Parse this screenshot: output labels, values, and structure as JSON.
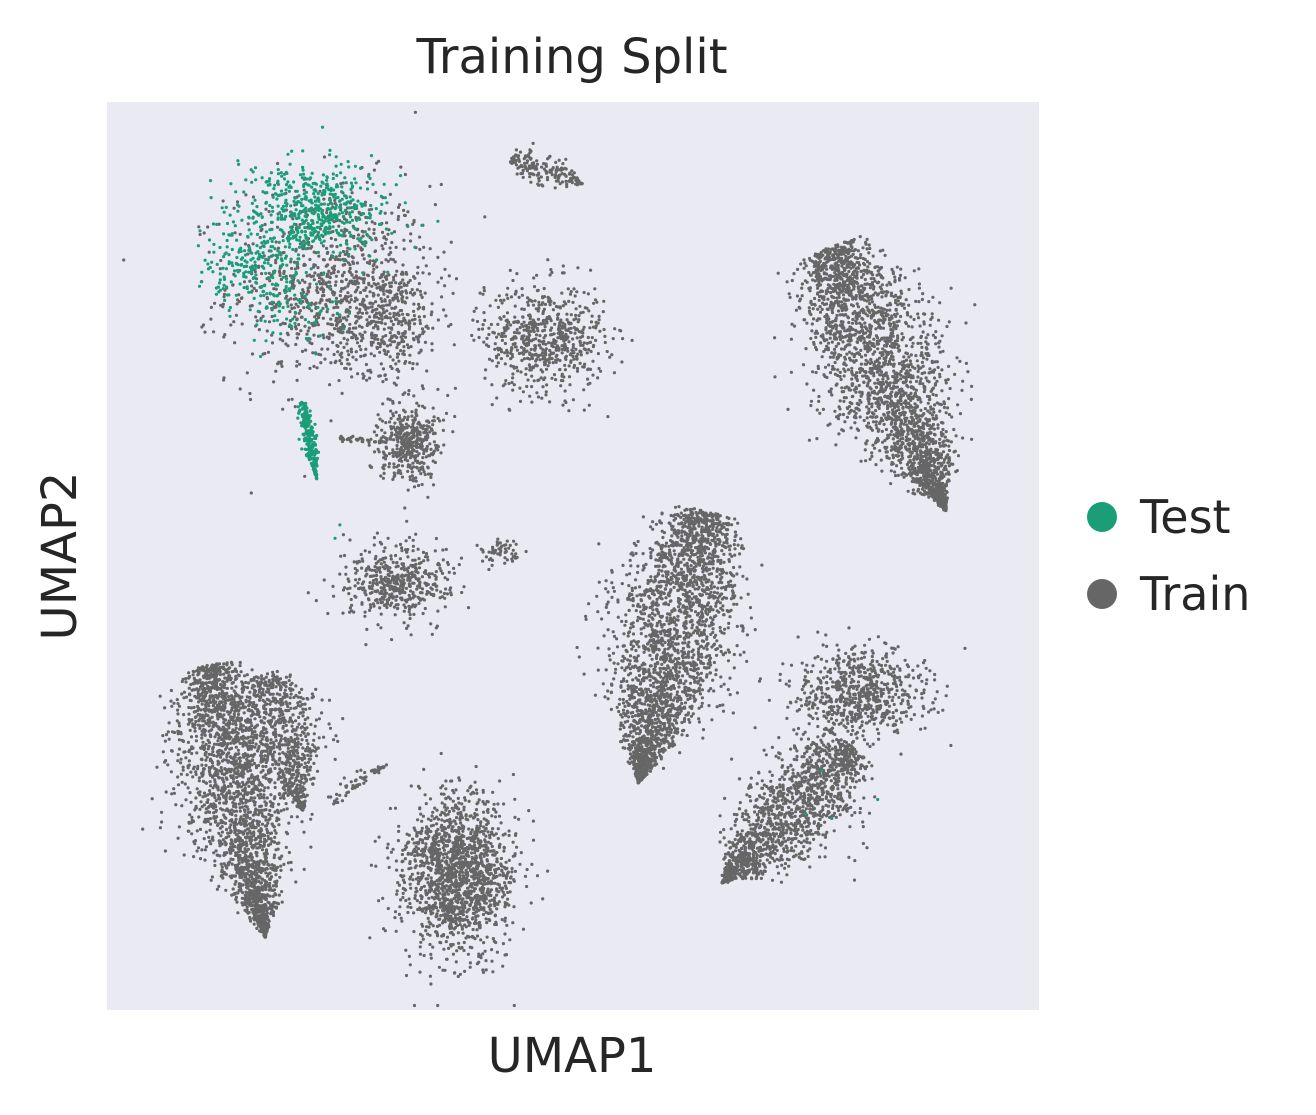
{
  "chart_data": {
    "type": "scatter",
    "title": "Training Split",
    "xlabel": "UMAP1",
    "ylabel": "UMAP2",
    "xlim": [
      0,
      1
    ],
    "ylim": [
      0,
      1
    ],
    "grid": false,
    "legend_position": "right",
    "background_color": "#eaeaf2",
    "series": [
      {
        "name": "Test",
        "color": "#1b9e77",
        "clusters": [
          {
            "cx": 0.22,
            "cy": 0.88,
            "rx": 0.08,
            "ry": 0.055,
            "n": 550,
            "shape": "ellipse"
          },
          {
            "cx": 0.15,
            "cy": 0.82,
            "rx": 0.05,
            "ry": 0.04,
            "n": 160,
            "shape": "ellipse"
          },
          {
            "cx": 0.19,
            "cy": 0.78,
            "rx": 0.06,
            "ry": 0.05,
            "n": 90,
            "shape": "ellipse"
          },
          {
            "x1": 0.21,
            "y1": 0.67,
            "x2": 0.225,
            "y2": 0.585,
            "width": 0.008,
            "n": 230,
            "shape": "line"
          },
          {
            "cx": 0.78,
            "cy": 0.24,
            "rx": 0.04,
            "ry": 0.08,
            "n": 4,
            "shape": "ellipse"
          },
          {
            "cx": 0.245,
            "cy": 0.52,
            "rx": 0.01,
            "ry": 0.01,
            "n": 2,
            "shape": "ellipse"
          }
        ]
      },
      {
        "name": "Train",
        "color": "#666666",
        "clusters": [
          {
            "cx": 0.24,
            "cy": 0.8,
            "rx": 0.11,
            "ry": 0.11,
            "n": 900,
            "shape": "ellipse"
          },
          {
            "cx": 0.3,
            "cy": 0.76,
            "rx": 0.06,
            "ry": 0.06,
            "n": 350,
            "shape": "ellipse"
          },
          {
            "cx": 0.47,
            "cy": 0.74,
            "rx": 0.065,
            "ry": 0.06,
            "n": 650,
            "shape": "ellipse"
          },
          {
            "x1": 0.435,
            "y1": 0.94,
            "x2": 0.51,
            "y2": 0.91,
            "width": 0.02,
            "n": 170,
            "shape": "line"
          },
          {
            "cx": 0.325,
            "cy": 0.625,
            "rx": 0.033,
            "ry": 0.045,
            "n": 420,
            "shape": "ellipse"
          },
          {
            "x1": 0.25,
            "y1": 0.63,
            "x2": 0.3,
            "y2": 0.625,
            "width": 0.004,
            "n": 40,
            "shape": "line"
          },
          {
            "cx": 0.31,
            "cy": 0.47,
            "rx": 0.055,
            "ry": 0.045,
            "n": 480,
            "shape": "ellipse"
          },
          {
            "cx": 0.42,
            "cy": 0.505,
            "rx": 0.02,
            "ry": 0.015,
            "n": 55,
            "shape": "ellipse"
          },
          {
            "x1": 0.775,
            "y1": 0.84,
            "x2": 0.9,
            "y2": 0.55,
            "width": 0.07,
            "n": 2600,
            "shape": "line"
          },
          {
            "x1": 0.64,
            "y1": 0.55,
            "x2": 0.57,
            "y2": 0.25,
            "width": 0.07,
            "n": 2600,
            "shape": "line"
          },
          {
            "cx": 0.81,
            "cy": 0.35,
            "rx": 0.07,
            "ry": 0.05,
            "n": 700,
            "shape": "ellipse"
          },
          {
            "x1": 0.8,
            "y1": 0.29,
            "x2": 0.66,
            "y2": 0.14,
            "width": 0.055,
            "n": 1500,
            "shape": "line"
          },
          {
            "x1": 0.11,
            "y1": 0.38,
            "x2": 0.17,
            "y2": 0.08,
            "width": 0.06,
            "n": 2400,
            "shape": "line"
          },
          {
            "x1": 0.17,
            "y1": 0.37,
            "x2": 0.21,
            "y2": 0.22,
            "width": 0.045,
            "n": 700,
            "shape": "line"
          },
          {
            "x1": 0.24,
            "y1": 0.23,
            "x2": 0.3,
            "y2": 0.27,
            "width": 0.01,
            "n": 60,
            "shape": "line"
          },
          {
            "cx": 0.375,
            "cy": 0.15,
            "rx": 0.06,
            "ry": 0.085,
            "n": 1600,
            "shape": "ellipse"
          }
        ]
      }
    ]
  }
}
